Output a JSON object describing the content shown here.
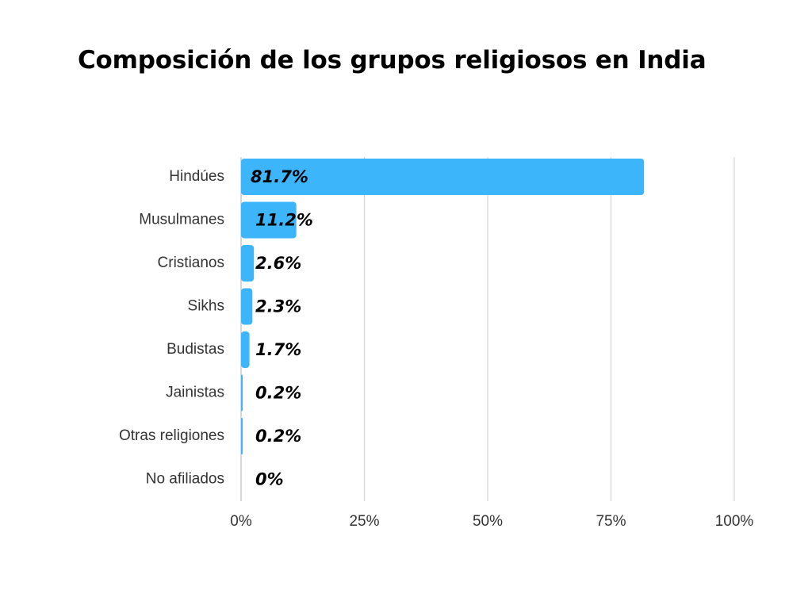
{
  "chart_data": {
    "type": "bar",
    "orientation": "horizontal",
    "title": "Composición de los grupos religiosos en India",
    "categories": [
      "Hindúes",
      "Musulmanes",
      "Cristianos",
      "Sikhs",
      "Budistas",
      "Jainistas",
      "Otras religiones",
      "No afiliados"
    ],
    "values": [
      81.7,
      11.2,
      2.6,
      2.3,
      1.7,
      0.2,
      0.2,
      0
    ],
    "value_labels": [
      "81.7%",
      "11.2%",
      "2.6%",
      "2.3%",
      "1.7%",
      "0.2%",
      "0.2%",
      "0%"
    ],
    "xlim": [
      0,
      100
    ],
    "xticks": [
      0,
      25,
      50,
      75,
      100
    ],
    "xtick_labels": [
      "0%",
      "25%",
      "50%",
      "75%",
      "100%"
    ],
    "grid": true,
    "bar_color": "#3db5fb",
    "xlabel": "",
    "ylabel": ""
  }
}
